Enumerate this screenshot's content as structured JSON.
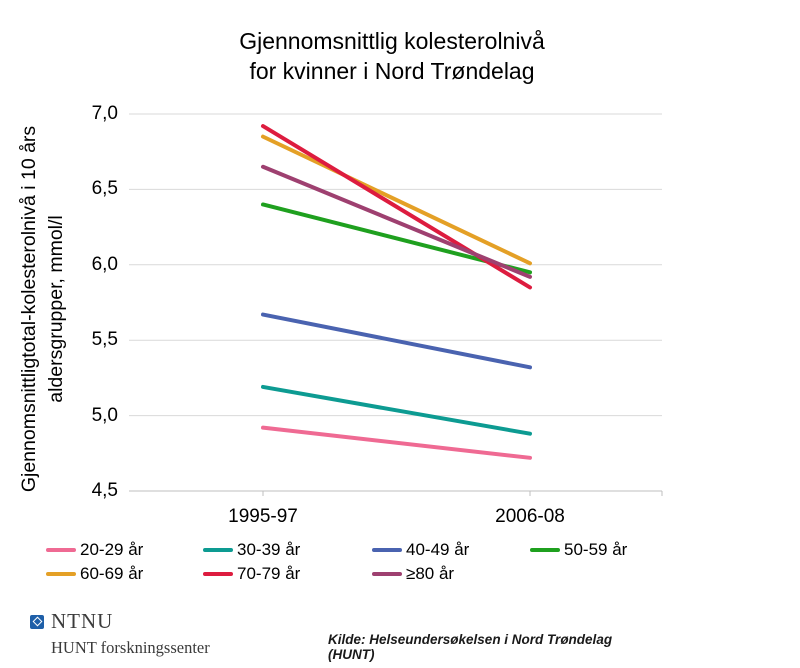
{
  "title": {
    "line1": "Gjennomsnittlig kolesterolnivå",
    "line2": "for kvinner i Nord Trøndelag"
  },
  "chart_data": {
    "type": "line",
    "title": "Gjennomsnittlig kolesterolnivå for kvinner i Nord Trøndelag",
    "categories": [
      "1995-97",
      "2006-08"
    ],
    "series": [
      {
        "name": "20-29 år",
        "color": "#EF6A93",
        "values": [
          4.92,
          4.72
        ]
      },
      {
        "name": "30-39 år",
        "color": "#0D9B92",
        "values": [
          5.19,
          4.88
        ]
      },
      {
        "name": "40-49 år",
        "color": "#4A63B0",
        "values": [
          5.67,
          5.32
        ]
      },
      {
        "name": "50-59 år",
        "color": "#1FA01F",
        "values": [
          6.4,
          5.95
        ]
      },
      {
        "name": "60-69 år",
        "color": "#E4A026",
        "values": [
          6.85,
          6.01
        ]
      },
      {
        "name": "70-79 år",
        "color": "#DD1C3F",
        "values": [
          6.92,
          5.85
        ]
      },
      {
        "name": "≥80 år",
        "color": "#9E4070",
        "values": [
          6.65,
          5.92
        ]
      }
    ],
    "ylabel_line1": "Gjennomsnittligtotal-kolesterolnivå i 10 års",
    "ylabel_line2": "aldersgrupper, mmol/l",
    "xlabel": "",
    "ylim": [
      4.5,
      7.0
    ],
    "yticks": [
      7.0,
      6.5,
      6.0,
      5.5,
      5.0,
      4.5
    ],
    "ytick_labels": [
      "7,0",
      "6,5",
      "6,0",
      "5,5",
      "5,0",
      "4,5"
    ],
    "grid": "horizontal",
    "legend_position": "bottom"
  },
  "footer": {
    "logo_text": "NTNU",
    "logo_subtext": "HUNT forskningssenter",
    "source": "Kilde: Helseundersøkelsen i Nord Trøndelag (HUNT)"
  },
  "colors": {
    "grid": "#D9D9D9",
    "axis": "#BFBFBF",
    "ntnu_blue": "#1E5FA8"
  }
}
